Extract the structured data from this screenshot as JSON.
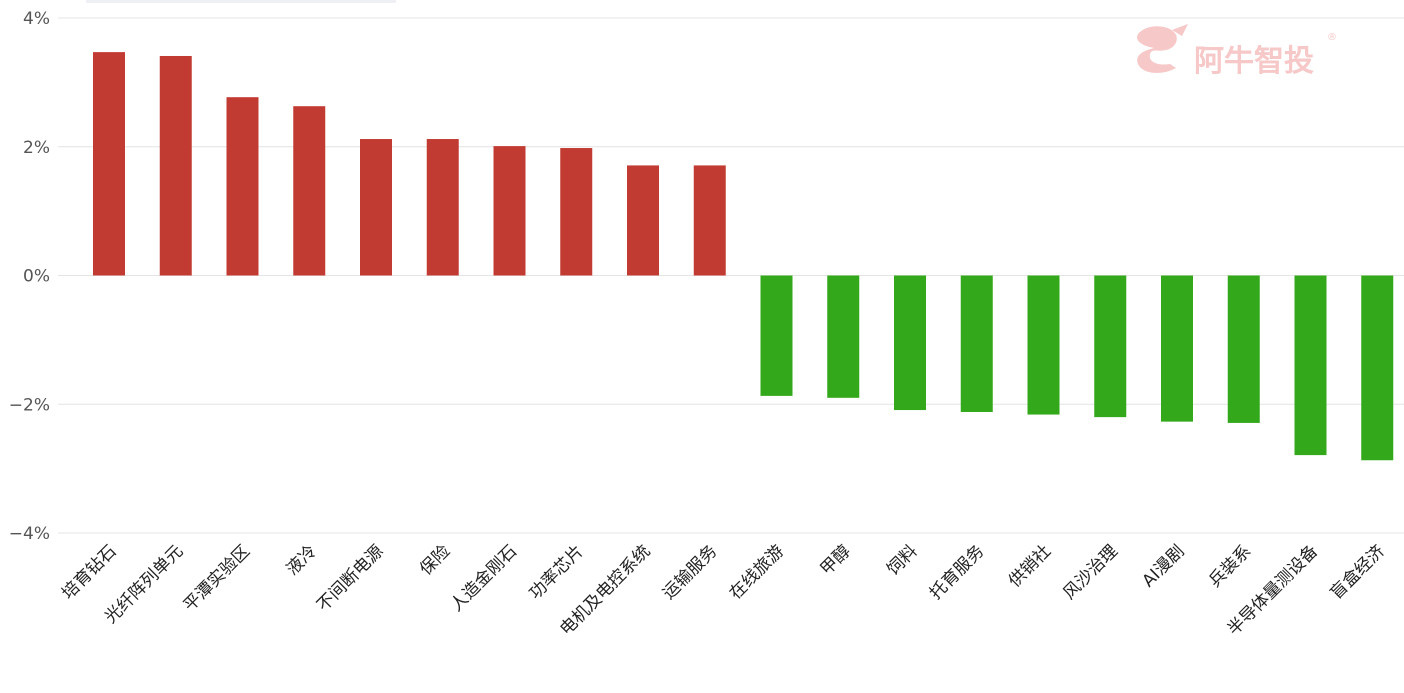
{
  "watermark": {
    "text": "阿牛智投",
    "icon": "bull-logo-icon"
  },
  "colors": {
    "positive": "#c23b33",
    "negative": "#33a81a",
    "grid": "#e4e4e4"
  },
  "chart_data": {
    "type": "bar",
    "title": "",
    "xlabel": "",
    "ylabel": "",
    "ylim": [
      -4,
      4
    ],
    "yticks": [
      "4%",
      "2%",
      "0%",
      "−2%",
      "−4%"
    ],
    "ytick_values": [
      4,
      2,
      0,
      -2,
      -4
    ],
    "grid": true,
    "categories": [
      "培育钻石",
      "光纤阵列单元",
      "平潭实验区",
      "液冷",
      "不间断电源",
      "保险",
      "人造金刚石",
      "功率芯片",
      "电机及电控系统",
      "运输服务",
      "在线旅游",
      "甲醇",
      "饲料",
      "托育服务",
      "供销社",
      "风沙治理",
      "AI漫剧",
      "兵装系",
      "半导体量测设备",
      "盲盒经济"
    ],
    "values": [
      3.47,
      3.41,
      2.77,
      2.63,
      2.12,
      2.12,
      2.01,
      1.98,
      1.71,
      1.71,
      -1.87,
      -1.9,
      -2.09,
      -2.12,
      -2.16,
      -2.2,
      -2.27,
      -2.29,
      -2.79,
      -2.87
    ]
  }
}
